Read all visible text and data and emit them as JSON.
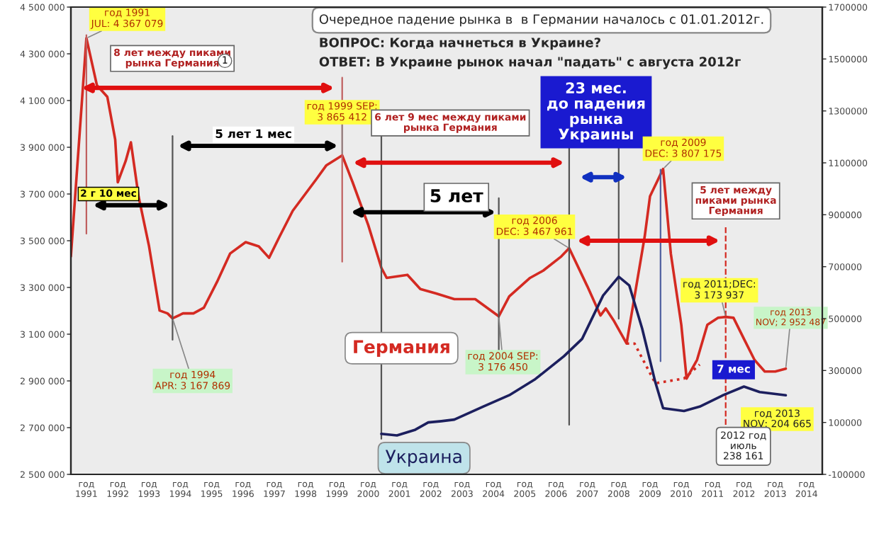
{
  "chart_data": {
    "type": "line",
    "title": "Очередное падение рынка в  в Германии началось с 01.01.2012г.",
    "subtitle": "ВОПРОС: Когда начнеться в Украине?\nОТВЕТ: В Украине рынок начал \"падать\" с августа 2012г",
    "series": [
      {
        "name": "Германия",
        "color": "#d42a22",
        "x": [
          "1991-01",
          "1991-07",
          "1991-11",
          "1992-03",
          "1992-06",
          "1992-07",
          "1992-10",
          "1992-12",
          "1993-03",
          "1993-07",
          "1993-11",
          "1994-02",
          "1994-04",
          "1994-08",
          "1994-12",
          "1995-04",
          "1995-09",
          "1996-02",
          "1996-08",
          "1997-01",
          "1997-05",
          "1997-09",
          "1998-02",
          "1998-11",
          "1999-03",
          "1999-09",
          "2000-01",
          "2000-07",
          "2000-12",
          "2001-02",
          "2001-10",
          "2002-03",
          "2002-09",
          "2003-04",
          "2003-12",
          "2004-09",
          "2005-01",
          "2005-09",
          "2006-02",
          "2006-09",
          "2006-12",
          "2007-07",
          "2007-12",
          "2008-02",
          "2008-05",
          "2008-10",
          "2009-05",
          "2009-07",
          "2009-12",
          "2010-03",
          "2010-07",
          "2010-09",
          "2011-01",
          "2011-05",
          "2011-09",
          "2011-12",
          "2012-03",
          "2012-07",
          "2012-11",
          "2013-03",
          "2013-07",
          "2013-11"
        ],
        "values": [
          3433000,
          4367079,
          4165000,
          4116000,
          3933000,
          3750000,
          3841000,
          3921000,
          3689000,
          3476000,
          3201000,
          3189000,
          3167869,
          3189000,
          3189000,
          3213000,
          3323000,
          3445000,
          3494000,
          3476000,
          3427000,
          3518000,
          3628000,
          3762000,
          3823000,
          3865412,
          3750000,
          3567000,
          3384000,
          3341000,
          3354000,
          3293000,
          3274000,
          3250000,
          3250000,
          3176450,
          3262000,
          3341000,
          3372000,
          3433000,
          3467961,
          3305000,
          3180000,
          3210000,
          3160000,
          3060000,
          3520000,
          3690000,
          3807175,
          3445000,
          3140000,
          2910000,
          2990000,
          3140000,
          3170000,
          3173937,
          3170000,
          3080000,
          2990000,
          2940000,
          2940000,
          2952487
        ]
      },
      {
        "color": "#d42a22",
        "line_style": "dotted",
        "x": [
          "2008-10",
          "2009-01",
          "2009-09",
          "2010-08",
          "2011-02"
        ],
        "values": [
          3060000,
          3060000,
          2890000,
          2910000,
          2970000
        ]
      },
      {
        "name": "Украина",
        "color": "#1c1f5e",
        "axis": "y2",
        "x": [
          "2000-12",
          "2001-06",
          "2002-01",
          "2002-06",
          "2002-11",
          "2003-04",
          "2004-03",
          "2005-01",
          "2005-11",
          "2006-10",
          "2007-05",
          "2008-01",
          "2008-07",
          "2008-11",
          "2009-04",
          "2009-09",
          "2009-12",
          "2010-08",
          "2011-02",
          "2011-11",
          "2012-07",
          "2013-01",
          "2013-11"
        ],
        "values": [
          56000,
          50000,
          72000,
          100000,
          105000,
          111000,
          161000,
          205000,
          267000,
          355000,
          422000,
          589000,
          661000,
          628000,
          461000,
          255000,
          155000,
          144000,
          161000,
          205000,
          238161,
          217000,
          204665
        ]
      }
    ],
    "xlim": [
      "1991-01",
      "2015-01"
    ],
    "xticks": [
      {
        "value": "1991-07",
        "label": "год\n1991"
      },
      {
        "value": "1992-07",
        "label": "год\n1992"
      },
      {
        "value": "1993-07",
        "label": "год\n1993"
      },
      {
        "value": "1994-07",
        "label": "год\n1994"
      },
      {
        "value": "1995-07",
        "label": "год\n1995"
      },
      {
        "value": "1996-07",
        "label": "год\n1996"
      },
      {
        "value": "1997-07",
        "label": "год\n1997"
      },
      {
        "value": "1998-07",
        "label": "год\n1998"
      },
      {
        "value": "1999-07",
        "label": "год\n1999"
      },
      {
        "value": "2000-07",
        "label": "год\n2000"
      },
      {
        "value": "2001-07",
        "label": "год\n2001"
      },
      {
        "value": "2002-07",
        "label": "год\n2002"
      },
      {
        "value": "2003-07",
        "label": "год\n2003"
      },
      {
        "value": "2004-07",
        "label": "год\n2004"
      },
      {
        "value": "2005-07",
        "label": "год\n2005"
      },
      {
        "value": "2006-07",
        "label": "год\n2006"
      },
      {
        "value": "2007-07",
        "label": "год\n2007"
      },
      {
        "value": "2008-07",
        "label": "год\n2008"
      },
      {
        "value": "2009-07",
        "label": "год\n2009"
      },
      {
        "value": "2010-07",
        "label": "год\n2010"
      },
      {
        "value": "2011-07",
        "label": "год\n2011"
      },
      {
        "value": "2012-07",
        "label": "год\n2012"
      },
      {
        "value": "2013-07",
        "label": "год\n2013"
      },
      {
        "value": "2014-07",
        "label": "год\n2014"
      }
    ],
    "ylim": [
      2500000,
      4500000
    ],
    "yticks": [
      {
        "value": 2500000,
        "label": "2 500 000"
      },
      {
        "value": 2700000,
        "label": "2 700 000"
      },
      {
        "value": 2900000,
        "label": "2 900 000"
      },
      {
        "value": 3100000,
        "label": "3 100 000"
      },
      {
        "value": 3300000,
        "label": "3 300 000"
      },
      {
        "value": 3500000,
        "label": "3 500 000"
      },
      {
        "value": 3700000,
        "label": "3 700 000"
      },
      {
        "value": 3900000,
        "label": "3 900 000"
      },
      {
        "value": 4100000,
        "label": "4 100 000"
      },
      {
        "value": 4300000,
        "label": "4 300 000"
      },
      {
        "value": 4500000,
        "label": "4 500 000"
      }
    ],
    "y2lim": [
      -100000,
      1700000
    ],
    "y2ticks": [
      -100000,
      100000,
      300000,
      500000,
      700000,
      900000,
      1100000,
      1300000,
      1500000,
      1700000
    ],
    "grid": false,
    "legend": false,
    "marker": "none",
    "line_style": "solid",
    "ref_lines": [
      {
        "axis": "x",
        "value": "1991-07",
        "color": "#c06060"
      },
      {
        "axis": "x",
        "value": "1994-04",
        "color": "#555555"
      },
      {
        "axis": "x",
        "value": "1999-09",
        "color": "#c06060"
      },
      {
        "axis": "x",
        "value": "2000-12",
        "color": "#555555"
      },
      {
        "axis": "x",
        "value": "2004-09",
        "color": "#555555"
      },
      {
        "axis": "x",
        "value": "2006-12",
        "color": "#555555"
      },
      {
        "axis": "x",
        "value": "2008-07",
        "color": "#555555"
      },
      {
        "axis": "x",
        "value": "2009-11",
        "color": "#5060a0"
      },
      {
        "axis": "x",
        "value": "2011-12",
        "color": "#d42a22",
        "line_style": "dashed"
      }
    ],
    "annotations": [
      {
        "text": "год 1991\nJUL: 4 367 079",
        "x": "1991-07",
        "y": 4367079
      },
      "8 лет между пиками\nрынка Германия",
      "1",
      {
        "text": "год 1999 SEP:\n3 865 412",
        "x": "1999-09",
        "y": 3865412
      },
      "6 лет 9 мес между пиками\nрынка Германия",
      "5 лет 1 мес",
      "2 г 10 мес",
      "5 лет",
      "23 мес.\nдо падения\nрынка\nУкраины",
      {
        "text": "год 2009\nDEC: 3 807 175",
        "x": "2009-12",
        "y": 3807175
      },
      {
        "text": "год 2006\nDEC: 3 467 961",
        "x": "2006-12",
        "y": 3467961
      },
      "5 лет между\nпиками рынка\nГермания",
      {
        "text": "год 1994\nAPR: 3 167 869",
        "x": "1994-04",
        "y": 3167869
      },
      {
        "text": "год 2004 SEP:\n3 176 450",
        "x": "2004-09",
        "y": 3176450
      },
      {
        "text": "год 2011;DEC:\n3 173 937",
        "x": "2011-12",
        "y": 3173937
      },
      "7 мес",
      {
        "text": "год 2013\nNOV; 2 952 487",
        "x": "2013-11",
        "y": 2952487
      },
      "год 2013\nNOV; 204 665",
      "2012 год\nиюль\n238 161"
    ]
  }
}
